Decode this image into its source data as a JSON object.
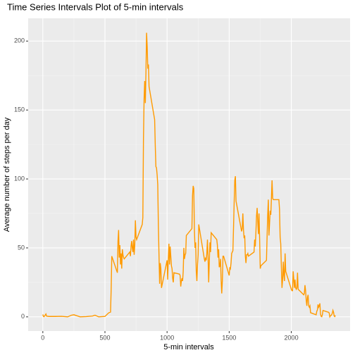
{
  "chart_data": {
    "type": "line",
    "title": "Time Series Intervals Plot of 5-min intervals",
    "x_label": "5-min intervals",
    "y_label": "Average number of steps per day",
    "color": "#ff9a00",
    "grid": true,
    "xlim": [
      -118,
      2473
    ],
    "ylim": [
      -10.3,
      216.5
    ],
    "xticks": [
      0,
      500,
      1000,
      1500,
      2000
    ],
    "yticks": [
      0,
      50,
      100,
      150,
      200
    ],
    "x": [
      0,
      5,
      10,
      25,
      30,
      50,
      100,
      150,
      200,
      230,
      250,
      300,
      350,
      400,
      420,
      450,
      500,
      530,
      545,
      550,
      555,
      600,
      605,
      610,
      615,
      620,
      625,
      630,
      635,
      640,
      645,
      650,
      655,
      700,
      705,
      710,
      715,
      720,
      725,
      730,
      735,
      740,
      745,
      750,
      755,
      800,
      805,
      810,
      815,
      820,
      825,
      830,
      835,
      840,
      845,
      850,
      855,
      900,
      905,
      910,
      915,
      920,
      925,
      930,
      935,
      940,
      945,
      950,
      955,
      1000,
      1005,
      1010,
      1015,
      1020,
      1025,
      1030,
      1035,
      1040,
      1045,
      1050,
      1055,
      1100,
      1105,
      1110,
      1115,
      1120,
      1125,
      1130,
      1135,
      1140,
      1145,
      1150,
      1155,
      1200,
      1205,
      1210,
      1215,
      1220,
      1225,
      1230,
      1235,
      1240,
      1245,
      1250,
      1255,
      1300,
      1305,
      1310,
      1315,
      1320,
      1325,
      1330,
      1335,
      1340,
      1345,
      1350,
      1355,
      1400,
      1405,
      1410,
      1415,
      1420,
      1425,
      1430,
      1435,
      1440,
      1445,
      1450,
      1455,
      1500,
      1505,
      1510,
      1515,
      1520,
      1525,
      1530,
      1535,
      1540,
      1545,
      1550,
      1555,
      1600,
      1605,
      1610,
      1615,
      1620,
      1625,
      1630,
      1635,
      1640,
      1645,
      1650,
      1655,
      1700,
      1705,
      1710,
      1715,
      1720,
      1725,
      1730,
      1735,
      1740,
      1745,
      1750,
      1755,
      1800,
      1805,
      1810,
      1815,
      1820,
      1825,
      1830,
      1835,
      1840,
      1845,
      1850,
      1855,
      1900,
      1905,
      1910,
      1915,
      1920,
      1925,
      1930,
      1935,
      1940,
      1945,
      1950,
      1955,
      2000,
      2005,
      2010,
      2015,
      2020,
      2025,
      2030,
      2035,
      2040,
      2045,
      2050,
      2055,
      2100,
      2105,
      2110,
      2115,
      2120,
      2125,
      2130,
      2135,
      2140,
      2145,
      2150,
      2155,
      2200,
      2205,
      2210,
      2215,
      2220,
      2225,
      2230,
      2235,
      2240,
      2245,
      2250,
      2255,
      2300,
      2305,
      2310,
      2315,
      2320,
      2325,
      2330,
      2335,
      2340,
      2345,
      2350,
      2355
    ],
    "values": [
      1.7,
      0.3,
      0.1,
      2.1,
      0.5,
      0.3,
      0.3,
      0.4,
      0,
      1.2,
      1.5,
      0,
      0.2,
      0.6,
      1.2,
      0,
      0.3,
      2.9,
      3.5,
      20,
      44,
      32,
      55,
      63,
      43,
      52,
      38,
      46,
      35,
      49,
      45,
      43,
      42,
      47,
      44,
      51,
      55,
      50,
      47,
      56,
      45,
      52,
      70,
      58,
      56,
      67,
      72,
      129,
      158,
      171,
      155,
      177,
      206,
      196,
      180,
      183,
      167,
      143,
      124,
      109,
      108,
      103,
      96,
      66,
      45,
      24,
      39,
      35,
      21,
      41,
      27,
      42,
      53,
      38,
      51,
      44,
      37,
      35,
      28,
      25,
      32,
      31,
      30,
      22,
      26,
      28,
      26,
      33,
      50,
      42,
      45,
      46,
      59,
      64,
      88,
      95,
      93,
      63,
      50,
      54,
      33,
      26,
      38,
      45,
      67,
      42,
      40,
      43,
      41,
      46,
      56,
      43,
      25,
      40,
      54,
      47,
      61,
      56,
      52,
      43,
      49,
      36,
      37,
      42,
      27,
      17,
      26,
      44,
      44,
      30,
      36,
      35,
      39,
      46,
      47,
      48,
      65,
      83,
      99,
      102,
      84,
      62,
      64,
      75,
      63,
      57,
      59,
      44,
      39,
      45,
      45,
      46,
      44,
      47,
      56,
      51,
      61,
      73,
      79,
      69,
      60,
      75,
      57,
      35,
      37,
      41,
      58,
      74,
      85,
      59,
      68,
      77,
      74,
      86,
      99,
      86,
      85,
      85,
      78,
      58,
      53,
      36,
      21,
      27,
      40,
      30,
      26,
      46,
      33,
      20,
      19,
      19,
      33,
      27,
      21,
      27,
      21,
      20,
      21,
      32,
      20,
      16,
      17,
      23,
      19,
      12,
      8,
      14,
      16,
      8,
      7,
      8,
      3,
      1.5,
      4,
      5,
      9,
      7,
      8,
      9.8,
      2,
      0.4,
      0.1,
      1.6,
      4.6,
      3.3,
      2.8,
      0,
      0.8,
      1,
      1.6,
      2.6,
      4.7,
      3.3,
      0.6,
      0.2,
      1.1
    ]
  }
}
